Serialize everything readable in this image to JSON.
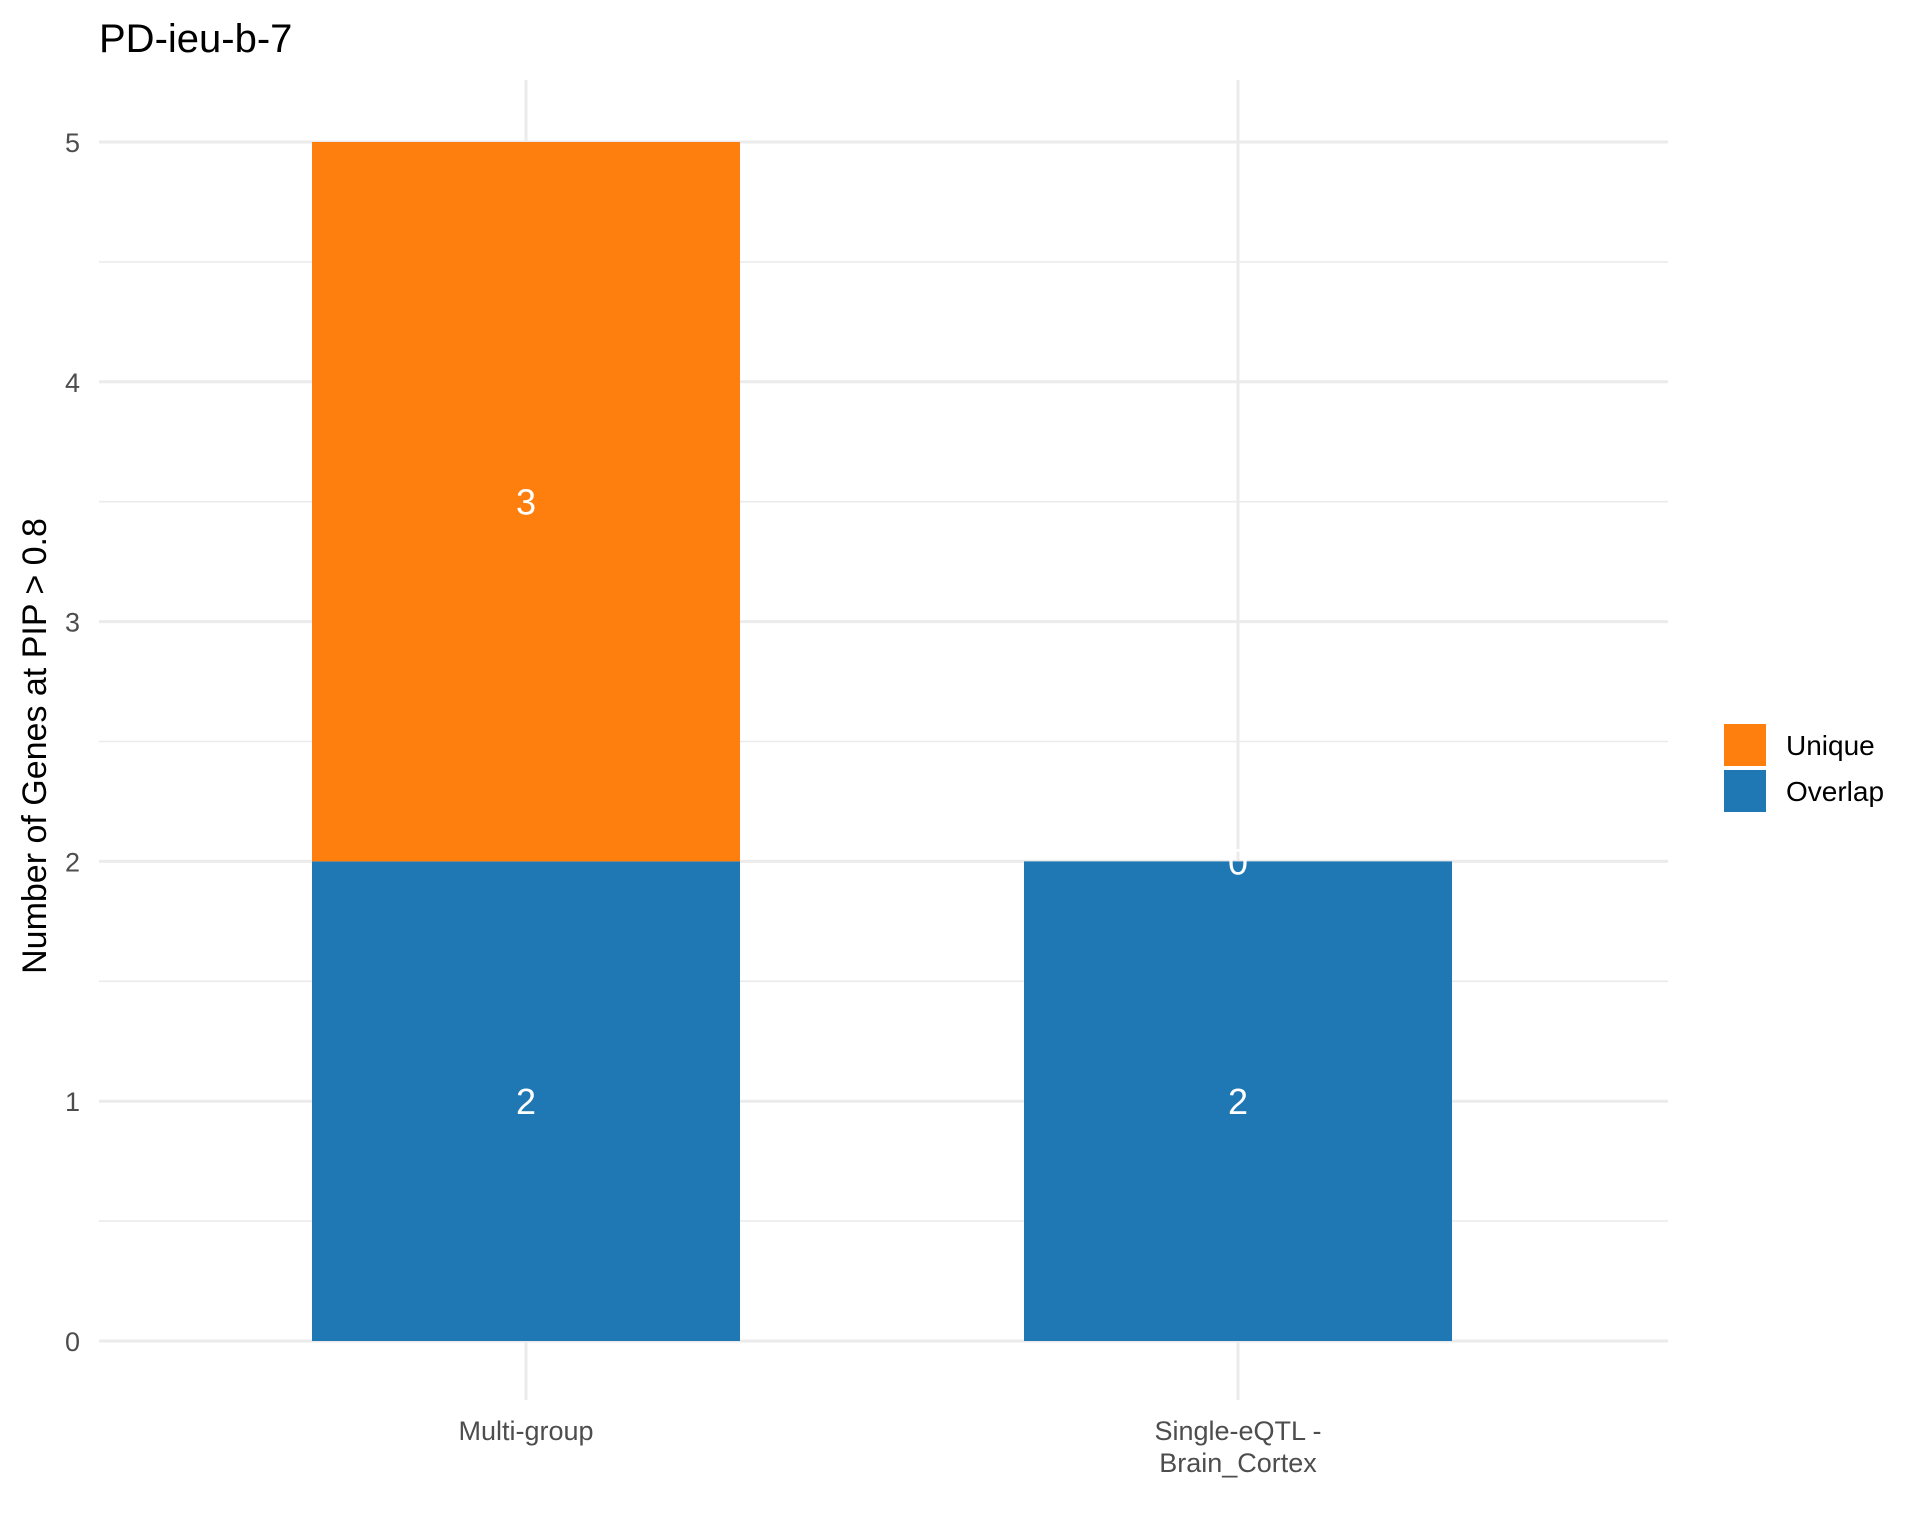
{
  "chart_data": {
    "type": "bar",
    "stacked": true,
    "title": "PD-ieu-b-7",
    "xlabel": "",
    "ylabel": "Number of Genes at PIP > 0.8",
    "categories": [
      [
        "Multi-group"
      ],
      [
        "Single-eQTL -",
        "Brain_Cortex"
      ]
    ],
    "series": [
      {
        "name": "Overlap",
        "color": "#1f77b4",
        "values": [
          2,
          2
        ]
      },
      {
        "name": "Unique",
        "color": "#ff7f0e",
        "values": [
          3,
          0
        ]
      }
    ],
    "ylim": [
      0,
      5
    ],
    "yticks": [
      0,
      1,
      2,
      3,
      4,
      5
    ],
    "grid": true,
    "legend": {
      "position": "right",
      "order": [
        "Unique",
        "Overlap"
      ]
    }
  }
}
